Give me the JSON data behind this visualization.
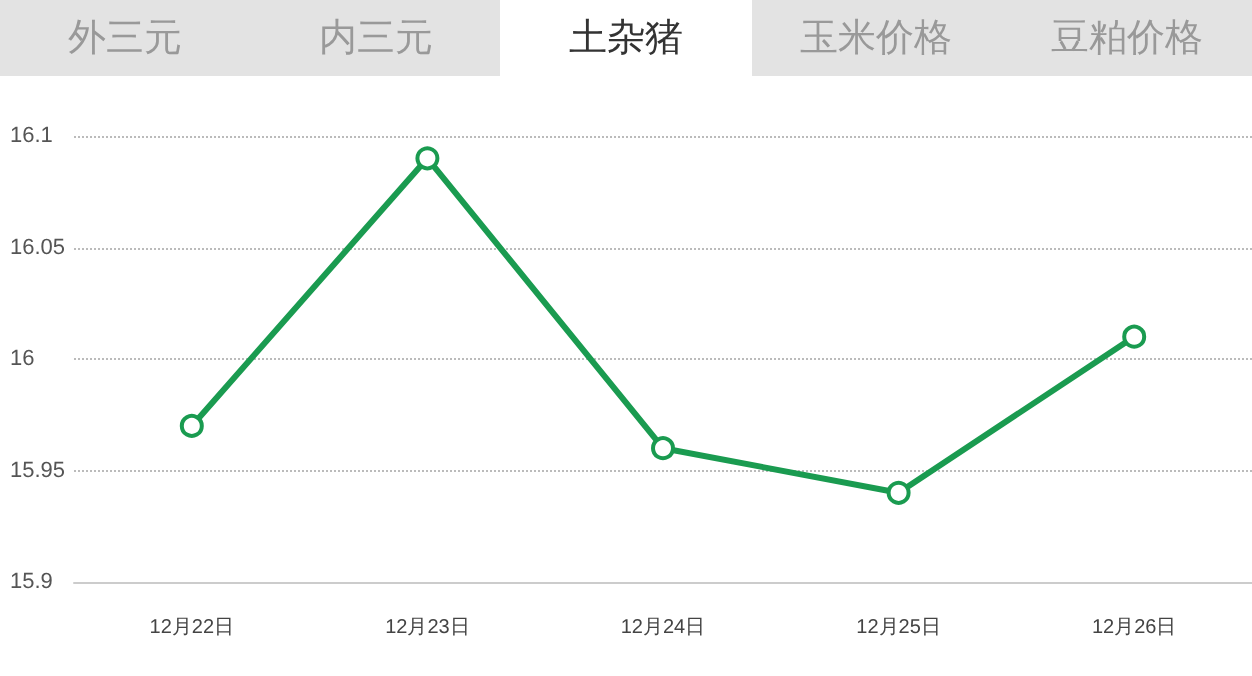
{
  "chart_data": {
    "type": "line",
    "annotations": [
      "外三元",
      "内三元",
      "土杂猪",
      "玉米价格",
      "豆粕价格"
    ],
    "categories": [
      "12月22日",
      "12月23日",
      "12月24日",
      "12月25日",
      "12月26日"
    ],
    "series": [
      {
        "color": "#1a9b50",
        "values": [
          15.97,
          16.09,
          15.96,
          15.94,
          16.01
        ]
      }
    ],
    "ylim": [
      15.9,
      16.1
    ],
    "yticks": [
      15.9,
      15.95,
      16,
      16.05,
      16.1
    ],
    "grid": "y",
    "marker": "circle",
    "line_style": "solid"
  }
}
